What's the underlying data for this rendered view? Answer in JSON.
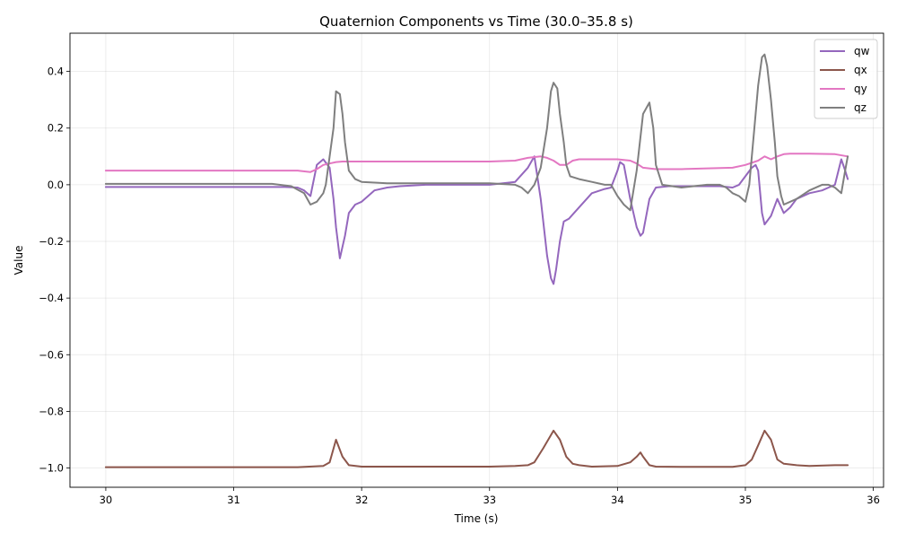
{
  "chart_data": {
    "type": "line",
    "title": "Quaternion Components vs Time (30.0–35.8 s)",
    "xlabel": "Time (s)",
    "ylabel": "Value",
    "xlim": [
      29.72,
      36.08
    ],
    "ylim": [
      -1.068,
      0.535
    ],
    "xticks": [
      30,
      31,
      32,
      33,
      34,
      35,
      36
    ],
    "xtick_labels": [
      "30",
      "31",
      "32",
      "33",
      "34",
      "35",
      "36"
    ],
    "yticks": [
      -1.0,
      -0.8,
      -0.6,
      -0.4,
      -0.2,
      0.0,
      0.2,
      0.4
    ],
    "ytick_labels": [
      "−1.0",
      "−0.8",
      "−0.6",
      "−0.4",
      "−0.2",
      "0.0",
      "0.2",
      "0.4"
    ],
    "grid": true,
    "legend_position": "top-right",
    "series": [
      {
        "name": "qw",
        "color": "#9467bd",
        "x": [
          30.0,
          31.4,
          31.5,
          31.55,
          31.6,
          31.65,
          31.7,
          31.75,
          31.78,
          31.8,
          31.83,
          31.87,
          31.9,
          31.95,
          32.0,
          32.05,
          32.1,
          32.2,
          32.3,
          32.5,
          33.0,
          33.2,
          33.3,
          33.35,
          33.4,
          33.45,
          33.48,
          33.5,
          33.52,
          33.55,
          33.58,
          33.62,
          33.7,
          33.8,
          33.9,
          33.95,
          34.0,
          34.02,
          34.05,
          34.1,
          34.15,
          34.18,
          34.2,
          34.25,
          34.3,
          34.4,
          34.6,
          34.8,
          34.9,
          34.95,
          35.0,
          35.05,
          35.08,
          35.1,
          35.13,
          35.15,
          35.2,
          35.25,
          35.3,
          35.35,
          35.4,
          35.5,
          35.6,
          35.65,
          35.7,
          35.75,
          35.78,
          35.8
        ],
        "y": [
          -0.008,
          -0.008,
          -0.01,
          -0.02,
          -0.04,
          0.07,
          0.09,
          0.06,
          -0.05,
          -0.15,
          -0.26,
          -0.18,
          -0.1,
          -0.07,
          -0.06,
          -0.04,
          -0.02,
          -0.01,
          -0.005,
          0.0,
          0.0,
          0.01,
          0.06,
          0.1,
          -0.05,
          -0.25,
          -0.33,
          -0.35,
          -0.3,
          -0.2,
          -0.13,
          -0.12,
          -0.08,
          -0.03,
          -0.015,
          -0.01,
          0.05,
          0.08,
          0.07,
          -0.05,
          -0.15,
          -0.18,
          -0.17,
          -0.05,
          -0.01,
          -0.005,
          -0.005,
          -0.005,
          -0.01,
          0.0,
          0.03,
          0.06,
          0.07,
          0.05,
          -0.1,
          -0.14,
          -0.11,
          -0.05,
          -0.1,
          -0.08,
          -0.05,
          -0.03,
          -0.02,
          -0.01,
          0.0,
          0.09,
          0.05,
          0.02
        ]
      },
      {
        "name": "qx",
        "color": "#8c564b",
        "x": [
          30.0,
          31.5,
          31.7,
          31.75,
          31.8,
          31.85,
          31.9,
          32.0,
          32.5,
          33.0,
          33.2,
          33.3,
          33.35,
          33.42,
          33.5,
          33.55,
          33.6,
          33.65,
          33.7,
          33.8,
          34.0,
          34.1,
          34.15,
          34.18,
          34.2,
          34.25,
          34.3,
          34.5,
          34.9,
          35.0,
          35.05,
          35.1,
          35.15,
          35.2,
          35.25,
          35.3,
          35.4,
          35.5,
          35.7,
          35.8
        ],
        "y": [
          -0.997,
          -0.997,
          -0.993,
          -0.98,
          -0.9,
          -0.96,
          -0.99,
          -0.995,
          -0.995,
          -0.995,
          -0.993,
          -0.99,
          -0.98,
          -0.93,
          -0.868,
          -0.9,
          -0.96,
          -0.985,
          -0.99,
          -0.995,
          -0.993,
          -0.98,
          -0.96,
          -0.945,
          -0.96,
          -0.99,
          -0.995,
          -0.996,
          -0.996,
          -0.99,
          -0.97,
          -0.92,
          -0.868,
          -0.9,
          -0.97,
          -0.985,
          -0.99,
          -0.993,
          -0.99,
          -0.99
        ]
      },
      {
        "name": "qy",
        "color": "#e377c2",
        "x": [
          30.0,
          31.5,
          31.6,
          31.65,
          31.7,
          31.75,
          31.8,
          31.85,
          32.0,
          32.5,
          33.0,
          33.2,
          33.3,
          33.4,
          33.45,
          33.5,
          33.55,
          33.6,
          33.65,
          33.7,
          34.0,
          34.1,
          34.15,
          34.2,
          34.3,
          34.5,
          34.9,
          35.0,
          35.1,
          35.15,
          35.2,
          35.25,
          35.3,
          35.35,
          35.5,
          35.7,
          35.8
        ],
        "y": [
          0.05,
          0.05,
          0.045,
          0.055,
          0.07,
          0.075,
          0.08,
          0.082,
          0.082,
          0.082,
          0.082,
          0.085,
          0.095,
          0.1,
          0.095,
          0.085,
          0.07,
          0.07,
          0.085,
          0.09,
          0.09,
          0.085,
          0.075,
          0.06,
          0.055,
          0.055,
          0.06,
          0.07,
          0.085,
          0.1,
          0.09,
          0.1,
          0.108,
          0.11,
          0.11,
          0.108,
          0.1
        ]
      },
      {
        "name": "qz",
        "color": "#7f7f7f",
        "x": [
          30.0,
          31.3,
          31.45,
          31.55,
          31.6,
          31.65,
          31.7,
          31.72,
          31.75,
          31.78,
          31.8,
          31.83,
          31.85,
          31.87,
          31.9,
          31.95,
          32.0,
          32.2,
          32.5,
          33.0,
          33.2,
          33.25,
          33.3,
          33.35,
          33.4,
          33.45,
          33.48,
          33.5,
          33.53,
          33.55,
          33.58,
          33.6,
          33.63,
          33.7,
          33.8,
          33.9,
          33.95,
          34.0,
          34.05,
          34.1,
          34.15,
          34.2,
          34.25,
          34.28,
          34.3,
          34.35,
          34.5,
          34.7,
          34.8,
          34.85,
          34.9,
          34.95,
          35.0,
          35.03,
          35.07,
          35.1,
          35.13,
          35.15,
          35.17,
          35.2,
          35.23,
          35.25,
          35.28,
          35.3,
          35.4,
          35.5,
          35.6,
          35.65,
          35.7,
          35.75,
          35.78,
          35.8
        ],
        "y": [
          0.003,
          0.003,
          -0.005,
          -0.03,
          -0.07,
          -0.06,
          -0.03,
          0.0,
          0.1,
          0.2,
          0.33,
          0.32,
          0.25,
          0.15,
          0.05,
          0.02,
          0.01,
          0.005,
          0.005,
          0.005,
          0.0,
          -0.01,
          -0.03,
          0.0,
          0.06,
          0.2,
          0.33,
          0.36,
          0.34,
          0.25,
          0.15,
          0.07,
          0.03,
          0.02,
          0.01,
          0.0,
          0.0,
          -0.04,
          -0.07,
          -0.09,
          0.05,
          0.25,
          0.29,
          0.2,
          0.07,
          0.0,
          -0.01,
          0.0,
          0.0,
          -0.01,
          -0.03,
          -0.04,
          -0.06,
          0.0,
          0.2,
          0.35,
          0.45,
          0.46,
          0.42,
          0.3,
          0.15,
          0.03,
          -0.04,
          -0.07,
          -0.05,
          -0.02,
          0.0,
          0.0,
          -0.01,
          -0.03,
          0.05,
          0.1
        ]
      }
    ]
  }
}
